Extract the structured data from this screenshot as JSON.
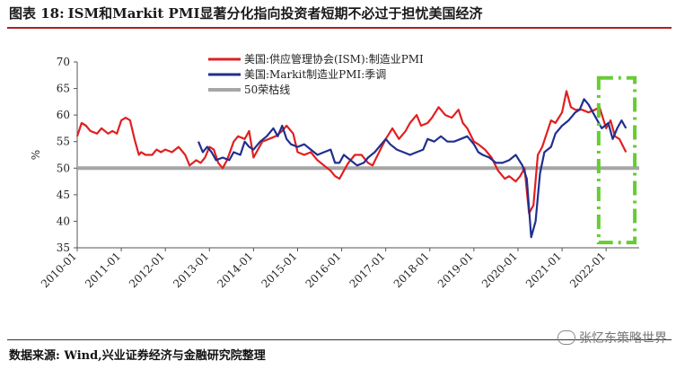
{
  "header": {
    "title_prefix": "图表 18:",
    "title_text": "ISM和Markit PMI显著分化指向投资者短期不必过于担忧美国经济"
  },
  "footer": {
    "source": "数据来源: Wind,兴业证券经济与金融研究院整理",
    "watermark": "张忆东策略世界"
  },
  "colors": {
    "ism": "#e02020",
    "markit": "#1f2f8f",
    "line50": "#a6a6a6",
    "highlight": "#66cc33"
  },
  "chart_data": {
    "type": "line",
    "ylabel": "%",
    "ylim": [
      35,
      70
    ],
    "yticks": [
      35,
      40,
      45,
      50,
      55,
      60,
      65,
      70
    ],
    "xlim": [
      2010.0,
      2022.75
    ],
    "xticks": [
      "2010-01",
      "2011-01",
      "2012-01",
      "2013-01",
      "2014-01",
      "2015-01",
      "2016-01",
      "2017-01",
      "2018-01",
      "2019-01",
      "2020-01",
      "2021-01",
      "2022-01"
    ],
    "annotation": "green dashed box highlighting 2022 divergence",
    "highlight_range": {
      "x": [
        2021.83,
        2022.65
      ],
      "y": [
        36,
        67
      ]
    },
    "series": [
      {
        "name": "美国:供应管理协会(ISM):制造业PMI",
        "x": [
          2010.0,
          2010.1,
          2010.2,
          2010.3,
          2010.45,
          2010.55,
          2010.7,
          2010.8,
          2010.9,
          2011.0,
          2011.1,
          2011.2,
          2011.3,
          2011.4,
          2011.45,
          2011.55,
          2011.7,
          2011.8,
          2011.9,
          2012.0,
          2012.15,
          2012.3,
          2012.45,
          2012.55,
          2012.7,
          2012.8,
          2012.9,
          2013.0,
          2013.1,
          2013.2,
          2013.3,
          2013.4,
          2013.55,
          2013.65,
          2013.8,
          2013.9,
          2014.0,
          2014.1,
          2014.2,
          2014.35,
          2014.5,
          2014.65,
          2014.75,
          2014.9,
          2015.0,
          2015.15,
          2015.3,
          2015.45,
          2015.6,
          2015.75,
          2015.85,
          2015.95,
          2016.05,
          2016.15,
          2016.3,
          2016.45,
          2016.6,
          2016.7,
          2016.85,
          2017.0,
          2017.15,
          2017.3,
          2017.45,
          2017.55,
          2017.7,
          2017.8,
          2017.95,
          2018.05,
          2018.2,
          2018.35,
          2018.5,
          2018.65,
          2018.75,
          2018.85,
          2019.0,
          2019.1,
          2019.25,
          2019.4,
          2019.55,
          2019.7,
          2019.8,
          2019.95,
          2020.05,
          2020.15,
          2020.25,
          2020.35,
          2020.45,
          2020.55,
          2020.65,
          2020.75,
          2020.85,
          2021.0,
          2021.1,
          2021.2,
          2021.3,
          2021.45,
          2021.6,
          2021.75,
          2021.85,
          2022.0,
          2022.1,
          2022.2,
          2022.3,
          2022.45
        ],
        "values": [
          56.0,
          58.5,
          58.0,
          57.0,
          56.5,
          57.5,
          56.5,
          57.0,
          56.5,
          59.0,
          59.5,
          59.0,
          55.5,
          52.5,
          53.0,
          52.5,
          52.5,
          53.5,
          53.0,
          53.5,
          53.0,
          54.0,
          52.5,
          50.5,
          51.5,
          51.0,
          52.0,
          54.0,
          53.5,
          51.0,
          50.0,
          51.5,
          55.0,
          56.0,
          55.5,
          57.0,
          52.0,
          53.5,
          55.0,
          55.5,
          56.0,
          57.0,
          58.0,
          56.5,
          53.0,
          52.5,
          53.0,
          51.5,
          50.5,
          49.5,
          48.5,
          48.0,
          49.5,
          51.0,
          52.5,
          52.5,
          51.0,
          50.5,
          53.0,
          55.5,
          57.5,
          55.5,
          57.0,
          58.5,
          60.0,
          58.0,
          58.5,
          59.5,
          61.5,
          60.0,
          59.5,
          61.0,
          58.5,
          57.5,
          55.0,
          54.5,
          53.5,
          52.0,
          49.5,
          48.0,
          48.5,
          47.5,
          48.5,
          50.0,
          41.5,
          43.0,
          52.5,
          54.0,
          56.5,
          59.0,
          58.5,
          60.5,
          64.5,
          61.5,
          61.0,
          61.0,
          60.5,
          61.0,
          61.5,
          57.5,
          59.0,
          56.0,
          55.5,
          53.0
        ]
      },
      {
        "name": "美国:Markit制造业PMI:季调",
        "x": [
          2012.75,
          2012.85,
          2012.95,
          2013.05,
          2013.15,
          2013.3,
          2013.45,
          2013.55,
          2013.7,
          2013.8,
          2013.9,
          2014.0,
          2014.15,
          2014.3,
          2014.45,
          2014.55,
          2014.65,
          2014.75,
          2014.85,
          2015.0,
          2015.15,
          2015.3,
          2015.45,
          2015.6,
          2015.75,
          2015.85,
          2015.95,
          2016.05,
          2016.2,
          2016.35,
          2016.5,
          2016.6,
          2016.75,
          2016.9,
          2017.0,
          2017.1,
          2017.25,
          2017.4,
          2017.55,
          2017.7,
          2017.85,
          2017.95,
          2018.1,
          2018.25,
          2018.4,
          2018.55,
          2018.7,
          2018.85,
          2019.0,
          2019.1,
          2019.2,
          2019.35,
          2019.5,
          2019.65,
          2019.8,
          2019.95,
          2020.1,
          2020.2,
          2020.3,
          2020.4,
          2020.5,
          2020.6,
          2020.75,
          2020.85,
          2021.0,
          2021.15,
          2021.3,
          2021.4,
          2021.5,
          2021.6,
          2021.7,
          2021.8,
          2021.9,
          2022.05,
          2022.15,
          2022.25,
          2022.35,
          2022.45
        ],
        "values": [
          55.0,
          53.0,
          54.0,
          53.0,
          51.5,
          52.0,
          51.5,
          53.0,
          52.5,
          55.0,
          54.0,
          53.5,
          55.0,
          56.0,
          57.5,
          56.0,
          58.0,
          55.5,
          54.5,
          54.0,
          54.5,
          53.5,
          52.5,
          53.0,
          53.5,
          51.0,
          51.0,
          52.5,
          51.5,
          50.5,
          51.0,
          52.0,
          53.0,
          54.5,
          55.5,
          54.5,
          53.5,
          53.0,
          52.5,
          53.0,
          53.5,
          55.5,
          55.0,
          56.0,
          55.0,
          55.0,
          55.5,
          56.0,
          54.5,
          53.0,
          52.5,
          52.0,
          51.0,
          51.0,
          51.5,
          52.5,
          50.5,
          48.0,
          37.0,
          40.0,
          49.0,
          53.0,
          54.0,
          56.5,
          58.0,
          59.0,
          60.5,
          61.0,
          63.0,
          62.0,
          60.5,
          59.0,
          57.5,
          58.5,
          55.5,
          57.5,
          59.0,
          57.5
        ]
      },
      {
        "name": "50荣枯线",
        "x": [
          2010.0,
          2022.75
        ],
        "values": [
          50,
          50
        ]
      }
    ]
  }
}
